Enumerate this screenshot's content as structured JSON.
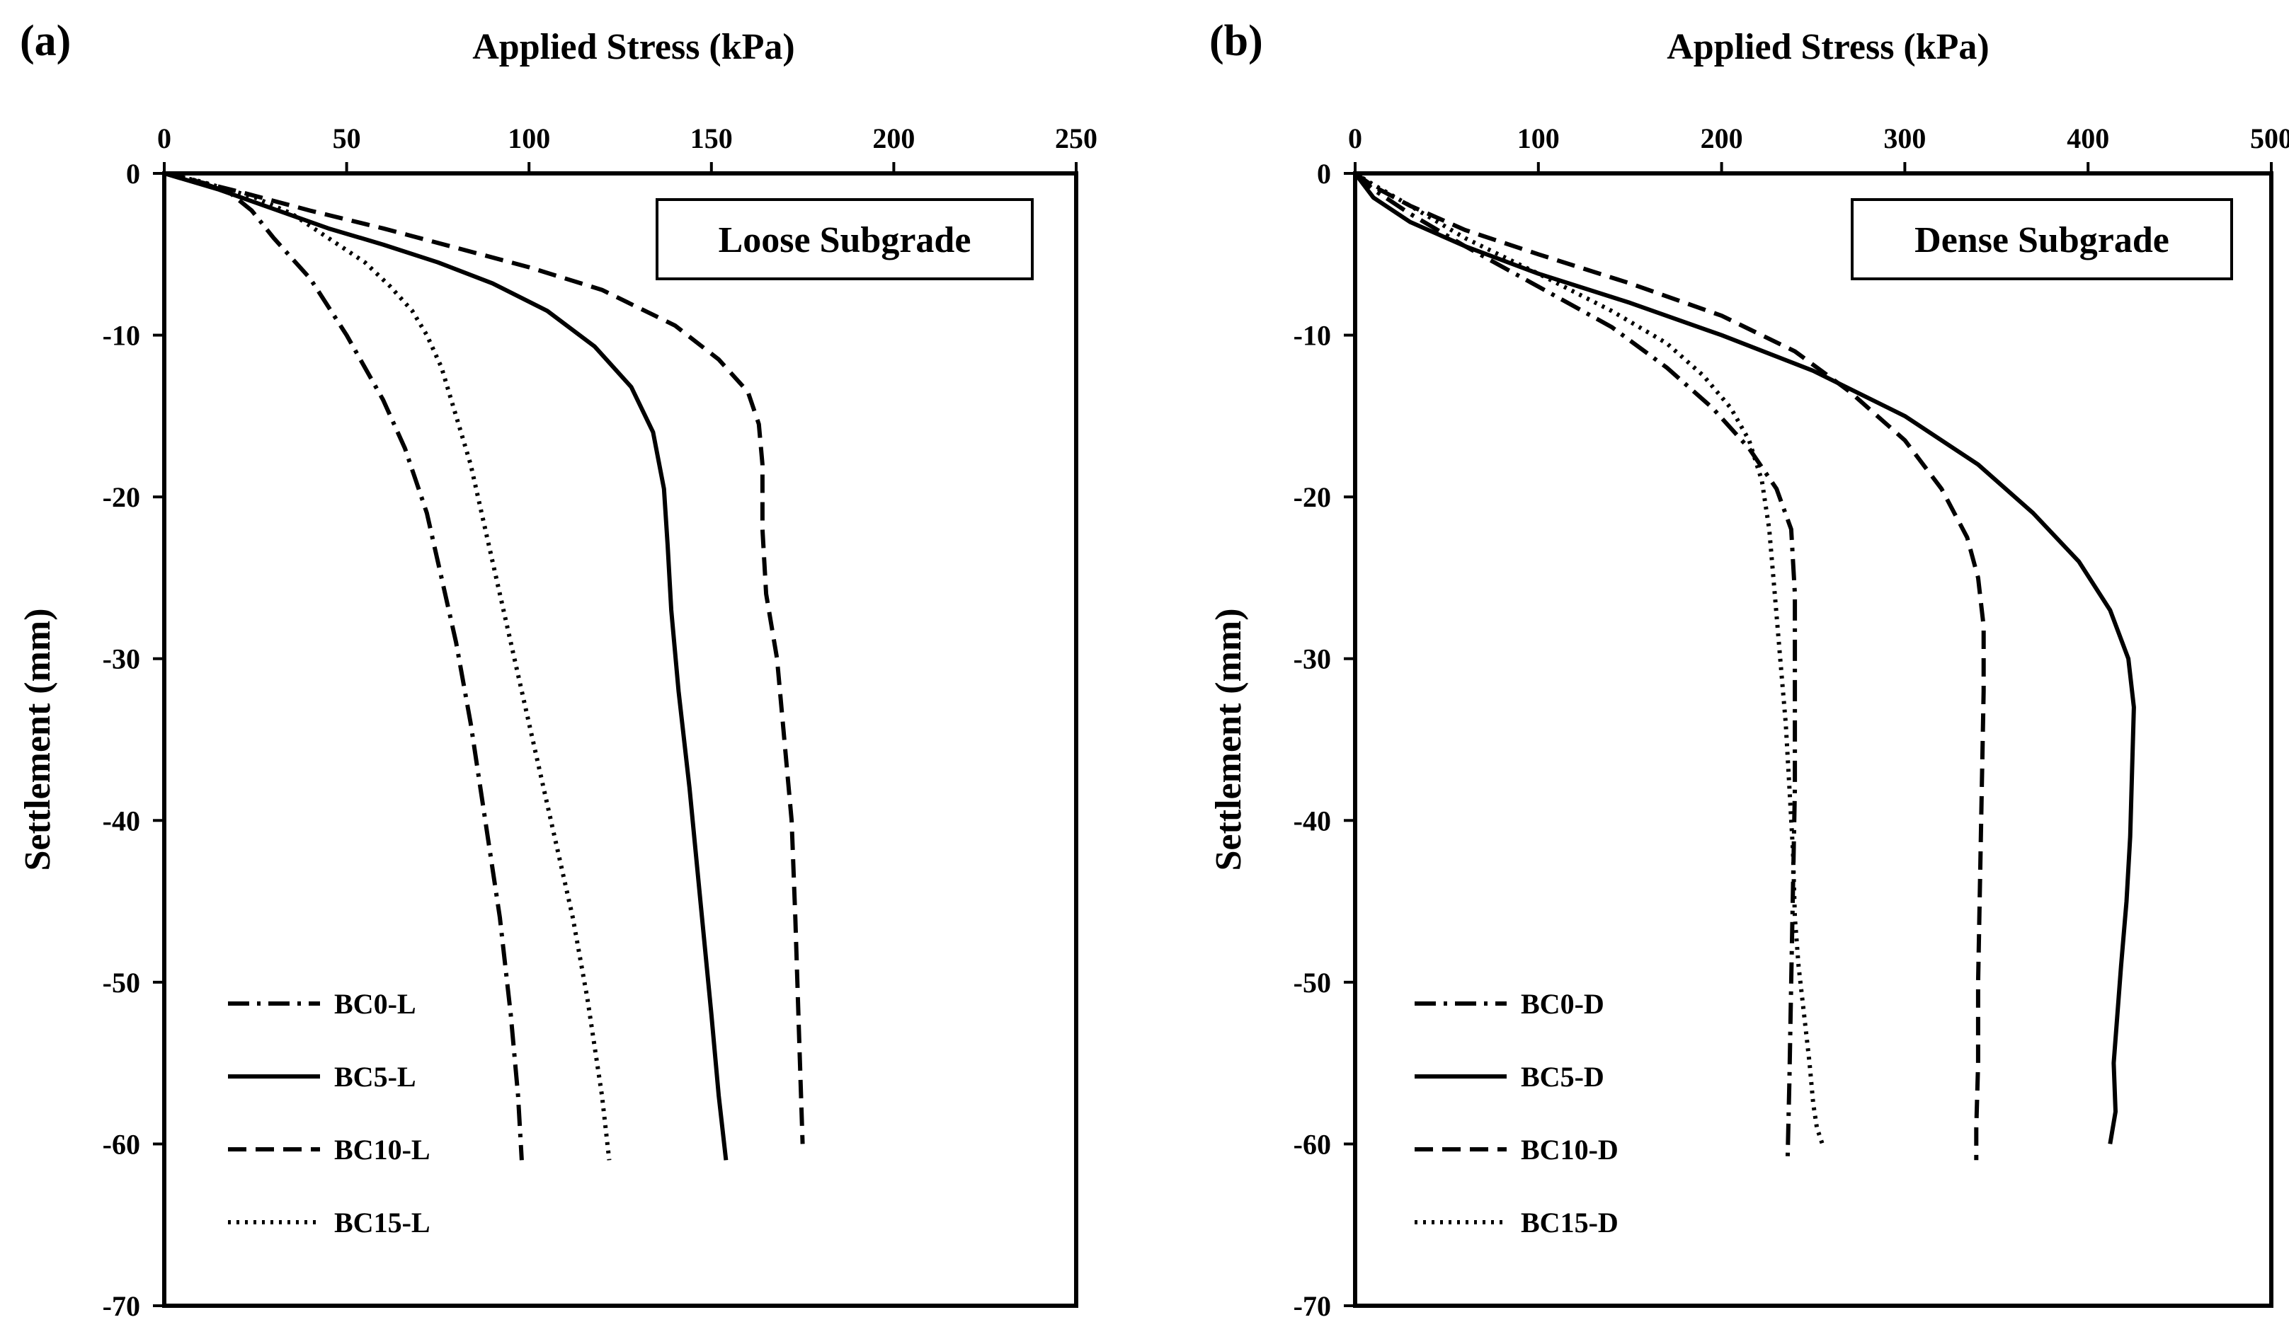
{
  "chart_data": [
    {
      "type": "line",
      "panel_label": "(a)",
      "title": "Loose Subgrade",
      "xlabel": "Applied Stress (kPa)",
      "ylabel": "Settlement (mm)",
      "xlim": [
        0,
        250
      ],
      "ylim": [
        -70,
        0
      ],
      "xticks": [
        "0",
        "50",
        "100",
        "150",
        "200",
        "250"
      ],
      "yticks": [
        "0",
        "-10",
        "-20",
        "-30",
        "-40",
        "-50",
        "-60",
        "-70"
      ],
      "legend_position": "bottom-left",
      "grid": false,
      "series": [
        {
          "name": "BC0-L",
          "style": "dashdot",
          "x": [
            0,
            8,
            18,
            24,
            30,
            40,
            50,
            60,
            66,
            72,
            76,
            80,
            84,
            88,
            92,
            95,
            97,
            98
          ],
          "y": [
            0,
            -0.4,
            -1.2,
            -2.3,
            -4.0,
            -6.5,
            -10.0,
            -14.0,
            -17.0,
            -21.0,
            -25.0,
            -29.0,
            -34.0,
            -40.0,
            -46.0,
            -52.0,
            -57.0,
            -61.0
          ]
        },
        {
          "name": "BC5-L",
          "style": "solid",
          "x": [
            0,
            15,
            30,
            45,
            60,
            75,
            90,
            105,
            118,
            128,
            134,
            137,
            138,
            139,
            141,
            144,
            147,
            150,
            152,
            154
          ],
          "y": [
            0,
            -1.0,
            -2.2,
            -3.4,
            -4.4,
            -5.5,
            -6.8,
            -8.5,
            -10.7,
            -13.2,
            -16.0,
            -19.5,
            -23.0,
            -27.0,
            -32.0,
            -38.0,
            -45.0,
            -52.0,
            -57.0,
            -61.0
          ]
        },
        {
          "name": "BC10-L",
          "style": "dashed",
          "x": [
            0,
            20,
            40,
            60,
            80,
            100,
            120,
            140,
            152,
            160,
            163,
            164,
            164,
            165,
            168,
            170,
            172,
            173,
            174,
            175
          ],
          "y": [
            0,
            -1.1,
            -2.3,
            -3.4,
            -4.6,
            -5.8,
            -7.2,
            -9.4,
            -11.5,
            -13.5,
            -15.5,
            -18.0,
            -22.0,
            -26.0,
            -30.0,
            -35.0,
            -40.0,
            -46.0,
            -53.0,
            -60.0
          ]
        },
        {
          "name": "BC15-L",
          "style": "dotted",
          "x": [
            0,
            10,
            25,
            35,
            45,
            55,
            62,
            68,
            72,
            76,
            80,
            84,
            88,
            92,
            96,
            100,
            104,
            108,
            112,
            116,
            120,
            122
          ],
          "y": [
            0,
            -0.5,
            -1.5,
            -2.5,
            -4.0,
            -5.5,
            -7.0,
            -8.5,
            -10.0,
            -12.0,
            -15.0,
            -18.0,
            -22.0,
            -26.0,
            -30.0,
            -34.0,
            -38.0,
            -42.0,
            -46.0,
            -51.0,
            -57.0,
            -61.0
          ]
        }
      ]
    },
    {
      "type": "line",
      "panel_label": "(b)",
      "title": "Dense Subgrade",
      "xlabel": "Applied Stress (kPa)",
      "ylabel": "Settlement (mm)",
      "xlim": [
        0,
        500
      ],
      "ylim": [
        -70,
        0
      ],
      "xticks": [
        "0",
        "100",
        "200",
        "300",
        "400",
        "500"
      ],
      "yticks": [
        "0",
        "-10",
        "-20",
        "-30",
        "-40",
        "-50",
        "-60",
        "-70"
      ],
      "legend_position": "bottom-left",
      "grid": false,
      "series": [
        {
          "name": "BC0-D",
          "style": "dashdot",
          "x": [
            0,
            10,
            30,
            60,
            100,
            140,
            170,
            195,
            215,
            230,
            238,
            240,
            240,
            240,
            239,
            238,
            237,
            236
          ],
          "y": [
            0,
            -1.0,
            -2.5,
            -4.5,
            -7.0,
            -9.5,
            -12.0,
            -14.5,
            -17.0,
            -19.5,
            -22.0,
            -26.0,
            -32.0,
            -38.0,
            -44.0,
            -50.0,
            -56.0,
            -61.0
          ]
        },
        {
          "name": "BC5-D",
          "style": "solid",
          "x": [
            0,
            10,
            30,
            60,
            100,
            150,
            200,
            250,
            300,
            340,
            370,
            395,
            412,
            422,
            425,
            424,
            423,
            421,
            418,
            416,
            414,
            415,
            412
          ],
          "y": [
            0,
            -1.5,
            -3.0,
            -4.5,
            -6.2,
            -8.0,
            -10.0,
            -12.2,
            -15.0,
            -18.0,
            -21.0,
            -24.0,
            -27.0,
            -30.0,
            -33.0,
            -37.0,
            -41.0,
            -45.0,
            -49.0,
            -52.0,
            -55.0,
            -58.0,
            -60.0
          ]
        },
        {
          "name": "BC10-D",
          "style": "dashed",
          "x": [
            0,
            10,
            30,
            60,
            100,
            150,
            200,
            240,
            270,
            300,
            320,
            334,
            340,
            343,
            343,
            342,
            341,
            340,
            340,
            339,
            339
          ],
          "y": [
            0,
            -0.8,
            -2.0,
            -3.5,
            -5.0,
            -6.8,
            -8.8,
            -11.0,
            -13.5,
            -16.5,
            -19.5,
            -22.5,
            -25.0,
            -28.0,
            -32.0,
            -38.0,
            -44.0,
            -50.0,
            -55.0,
            -59.0,
            -61.0
          ]
        },
        {
          "name": "BC15-D",
          "style": "dotted",
          "x": [
            0,
            10,
            30,
            60,
            100,
            140,
            170,
            190,
            205,
            215,
            222,
            226,
            229,
            232,
            235,
            237,
            239,
            240,
            242,
            245,
            248,
            250,
            252,
            255
          ],
          "y": [
            0,
            -0.7,
            -2.0,
            -4.0,
            -6.2,
            -8.5,
            -10.5,
            -12.5,
            -14.5,
            -16.5,
            -19.0,
            -22.0,
            -26.0,
            -30.0,
            -34.0,
            -38.0,
            -42.0,
            -46.0,
            -49.0,
            -52.0,
            -55.0,
            -57.5,
            -59.0,
            -60.0
          ]
        }
      ]
    }
  ]
}
